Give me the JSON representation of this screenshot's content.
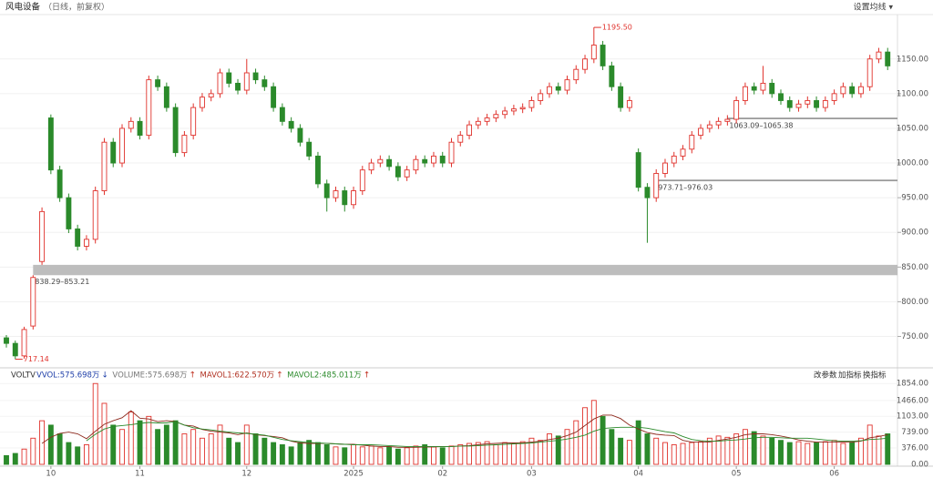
{
  "header": {
    "title": "风电设备",
    "subtitle": "（日线，前复权）",
    "menu": "设置均线 ▾"
  },
  "chart_data": [
    {
      "type": "candlestick",
      "open": [
        748,
        740,
        722,
        765,
        858,
        1065,
        990,
        950,
        905,
        880,
        890,
        960,
        1030,
        1000,
        1050,
        1060,
        1040,
        1120,
        1110,
        1080,
        1015,
        1040,
        1080,
        1095,
        1100,
        1130,
        1115,
        1105,
        1130,
        1120,
        1110,
        1080,
        1060,
        1050,
        1030,
        1010,
        970,
        950,
        960,
        940,
        960,
        990,
        1000,
        1005,
        995,
        980,
        990,
        1005,
        1000,
        1010,
        1000,
        1030,
        1040,
        1055,
        1060,
        1065,
        1070,
        1075,
        1078,
        1080,
        1090,
        1100,
        1110,
        1105,
        1120,
        1135,
        1150,
        1170,
        1140,
        1110,
        1080,
        1015,
        965,
        950,
        985,
        1000,
        1010,
        1020,
        1040,
        1050,
        1055,
        1060,
        1063,
        1090,
        1110,
        1105,
        1115,
        1100,
        1090,
        1080,
        1085,
        1090,
        1080,
        1090,
        1100,
        1110,
        1100,
        1110,
        1150,
        1160
      ],
      "high": [
        752,
        744,
        764,
        838.29,
        936,
        1070,
        996,
        956,
        911,
        896,
        966,
        1036,
        1036,
        1056,
        1066,
        1066,
        1126,
        1126,
        1116,
        1086,
        1046,
        1086,
        1101,
        1106,
        1136,
        1136,
        1121,
        1150,
        1136,
        1126,
        1116,
        1086,
        1066,
        1056,
        1036,
        1016,
        976,
        966,
        966,
        966,
        996,
        1006,
        1011,
        1011,
        1001,
        996,
        1011,
        1011,
        1016,
        1016,
        1036,
        1046,
        1061,
        1066,
        1071,
        1076,
        1081,
        1084,
        1086,
        1096,
        1106,
        1116,
        1116,
        1126,
        1141,
        1156,
        1195.5,
        1176,
        1146,
        1116,
        1096,
        1021,
        971,
        991,
        1006,
        1016,
        1026,
        1046,
        1056,
        1061,
        1066,
        1069,
        1096,
        1116,
        1116,
        1140,
        1121,
        1106,
        1096,
        1091,
        1096,
        1096,
        1096,
        1106,
        1116,
        1116,
        1116,
        1156,
        1166,
        1166
      ],
      "low": [
        734,
        717.14,
        718,
        760,
        853.21,
        984,
        944,
        899,
        874,
        874,
        884,
        954,
        994,
        994,
        1044,
        1034,
        1034,
        1104,
        1074,
        1009,
        1009,
        1034,
        1074,
        1089,
        1094,
        1109,
        1099,
        1099,
        1114,
        1104,
        1074,
        1054,
        1044,
        1024,
        1004,
        964,
        930,
        944,
        930,
        934,
        954,
        984,
        994,
        989,
        974,
        974,
        984,
        994,
        994,
        994,
        994,
        1024,
        1034,
        1049,
        1054,
        1059,
        1064,
        1069,
        1072,
        1074,
        1084,
        1094,
        1099,
        1099,
        1114,
        1129,
        1144,
        1134,
        1104,
        1074,
        1074,
        959,
        885,
        944,
        979,
        994,
        1004,
        1014,
        1034,
        1044,
        1049,
        1054,
        1057,
        1084,
        1099,
        1099,
        1094,
        1084,
        1074,
        1074,
        1079,
        1074,
        1074,
        1084,
        1094,
        1094,
        1094,
        1104,
        1144,
        1134
      ],
      "close": [
        740,
        722,
        760,
        835,
        930,
        990,
        950,
        905,
        880,
        890,
        960,
        1030,
        1000,
        1050,
        1060,
        1040,
        1120,
        1110,
        1080,
        1015,
        1040,
        1080,
        1095,
        1100,
        1130,
        1115,
        1105,
        1130,
        1120,
        1110,
        1080,
        1060,
        1050,
        1030,
        1010,
        970,
        950,
        960,
        940,
        960,
        990,
        1000,
        1005,
        995,
        980,
        990,
        1005,
        1000,
        1010,
        1000,
        1030,
        1040,
        1055,
        1060,
        1065,
        1070,
        1075,
        1078,
        1080,
        1090,
        1100,
        1110,
        1105,
        1120,
        1135,
        1150,
        1170,
        1140,
        1110,
        1080,
        1090,
        965,
        950,
        985,
        1000,
        1010,
        1020,
        1040,
        1050,
        1055,
        1060,
        1063,
        1090,
        1110,
        1105,
        1115,
        1100,
        1090,
        1080,
        1085,
        1090,
        1080,
        1090,
        1100,
        1110,
        1100,
        1110,
        1150,
        1160,
        1140
      ],
      "high_label": "1195.50",
      "low_label": "717.14",
      "gaps": [
        {
          "low": 838.29,
          "high": 853.21,
          "label": "838.29–853.21"
        },
        {
          "low": 973.71,
          "high": 976.03,
          "label": "973.71–976.03"
        },
        {
          "low": 1063.09,
          "high": 1065.38,
          "label": "1063.09–1065.38"
        }
      ],
      "ylim": [
        710,
        1214
      ],
      "yticks": [
        {
          "value": 750,
          "label": "750.00"
        },
        {
          "value": 800,
          "label": "800.00"
        },
        {
          "value": 850,
          "label": "850.00"
        },
        {
          "value": 900,
          "label": "900.00"
        },
        {
          "value": 950,
          "label": "950.00"
        },
        {
          "value": 1000,
          "label": "1000.00"
        },
        {
          "value": 1050,
          "label": "1050.00"
        },
        {
          "value": 1100,
          "label": "1100.00"
        },
        {
          "value": 1150,
          "label": "1150.00"
        }
      ],
      "up_color": "#e0322c",
      "down_color": "#2b8a2b"
    },
    {
      "type": "bar",
      "indicator": "VOLTV",
      "readouts": [
        {
          "label": "VVOL:575.698万",
          "arrow": "↓",
          "color": "#1f3fa8"
        },
        {
          "label": "VOLUME:575.698万",
          "arrow": "↑",
          "color": "#777777"
        },
        {
          "label": "MAVOL1:622.570万",
          "arrow": "↑",
          "color": "#b03020"
        },
        {
          "label": "MAVOL2:485.011万",
          "arrow": "↑",
          "color": "#2b8a2b"
        }
      ],
      "buttons": [
        "改参数",
        "加指标",
        "换指标"
      ],
      "categories": [
        null,
        null,
        null,
        null,
        null,
        "10",
        null,
        null,
        null,
        null,
        null,
        null,
        null,
        null,
        null,
        "11",
        null,
        null,
        null,
        null,
        null,
        null,
        null,
        null,
        null,
        null,
        null,
        "12",
        null,
        null,
        null,
        null,
        null,
        null,
        null,
        null,
        null,
        null,
        null,
        "2025",
        null,
        null,
        null,
        null,
        null,
        null,
        null,
        null,
        null,
        "02",
        null,
        null,
        null,
        null,
        null,
        null,
        null,
        null,
        null,
        "03",
        null,
        null,
        null,
        null,
        null,
        null,
        null,
        null,
        null,
        null,
        null,
        "04",
        null,
        null,
        null,
        null,
        null,
        null,
        null,
        null,
        null,
        null,
        "05",
        null,
        null,
        null,
        null,
        null,
        null,
        null,
        null,
        null,
        null,
        "06",
        null,
        null,
        null,
        null,
        null,
        null
      ],
      "values": [
        200,
        250,
        350,
        600,
        1000,
        900,
        700,
        500,
        400,
        450,
        1854,
        1400,
        900,
        800,
        1200,
        1000,
        1100,
        800,
        900,
        1000,
        700,
        800,
        600,
        700,
        900,
        600,
        500,
        900,
        700,
        600,
        500,
        450,
        400,
        500,
        550,
        500,
        450,
        400,
        380,
        450,
        400,
        420,
        380,
        400,
        350,
        380,
        420,
        450,
        400,
        380,
        420,
        450,
        480,
        500,
        520,
        450,
        500,
        480,
        520,
        600,
        550,
        700,
        650,
        800,
        1000,
        1300,
        1466,
        1100,
        800,
        600,
        550,
        1000,
        700,
        600,
        500,
        450,
        480,
        500,
        520,
        600,
        650,
        620,
        700,
        800,
        750,
        650,
        600,
        550,
        500,
        520,
        480,
        500,
        520,
        550,
        480,
        500,
        600,
        900,
        650,
        700
      ],
      "series": [
        {
          "name": "MAVOL1",
          "color": "#8e2a1e",
          "values": [
            null,
            null,
            null,
            null,
            480,
            620,
            710,
            740,
            700,
            590,
            760,
            920,
            1000,
            1070,
            1230,
            1060,
            1040,
            980,
            1000,
            980,
            900,
            880,
            800,
            760,
            740,
            720,
            680,
            720,
            680,
            660,
            640,
            610,
            530,
            490,
            480,
            480,
            480,
            470,
            460,
            460,
            440,
            420,
            410,
            410,
            390,
            390,
            390,
            400,
            400,
            410,
            410,
            420,
            430,
            450,
            470,
            480,
            490,
            490,
            490,
            510,
            530,
            570,
            600,
            660,
            740,
            890,
            1040,
            1130,
            1130,
            1050,
            900,
            810,
            730,
            690,
            670,
            660,
            550,
            510,
            510,
            510,
            550,
            580,
            620,
            680,
            700,
            700,
            680,
            650,
            610,
            560,
            530,
            510,
            510,
            510,
            510,
            510,
            530,
            610,
            640,
            680
          ]
        },
        {
          "name": "MAVOL2",
          "color": "#2b8a2b",
          "values": [
            null,
            null,
            null,
            null,
            null,
            null,
            null,
            null,
            null,
            540,
            690,
            810,
            870,
            890,
            910,
            940,
            960,
            950,
            950,
            980,
            900,
            840,
            810,
            790,
            760,
            740,
            720,
            710,
            690,
            670,
            620,
            570,
            540,
            520,
            500,
            490,
            480,
            470,
            460,
            450,
            450,
            450,
            440,
            430,
            420,
            410,
            410,
            410,
            410,
            410,
            410,
            420,
            420,
            430,
            440,
            450,
            460,
            470,
            480,
            490,
            510,
            530,
            550,
            580,
            620,
            670,
            760,
            820,
            840,
            850,
            850,
            850,
            830,
            790,
            750,
            720,
            640,
            570,
            540,
            530,
            530,
            550,
            560,
            580,
            610,
            620,
            620,
            610,
            600,
            600,
            600,
            580,
            560,
            540,
            530,
            530,
            540,
            570,
            580,
            600
          ]
        }
      ],
      "ylim": [
        0,
        1880
      ],
      "yticks": [
        {
          "value": 0,
          "label": "0.00"
        },
        {
          "value": 376,
          "label": "376.00"
        },
        {
          "value": 739,
          "label": "739.00"
        },
        {
          "value": 1103,
          "label": "1103.00"
        },
        {
          "value": 1466,
          "label": "1466.00"
        },
        {
          "value": 1854,
          "label": "1854.00"
        }
      ]
    }
  ]
}
